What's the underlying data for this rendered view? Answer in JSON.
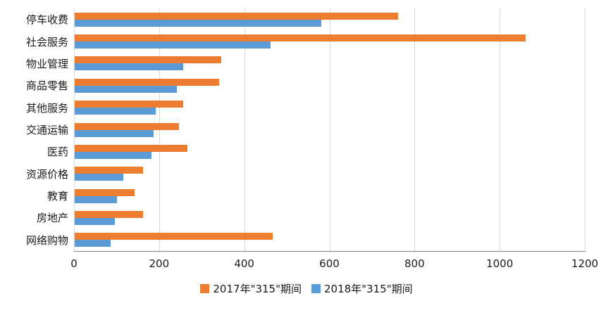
{
  "chart_data": {
    "type": "bar",
    "orientation": "horizontal",
    "title": "",
    "xlabel": "",
    "ylabel": "",
    "categories": [
      "停车收费",
      "社会服务",
      "物业管理",
      "商品零售",
      "其他服务",
      "交通运输",
      "医药",
      "资源价格",
      "教育",
      "房地产",
      "网络购物"
    ],
    "series": [
      {
        "name": "2017年\"315\"期间",
        "color": "#ED7D31",
        "values": [
          760,
          1060,
          345,
          340,
          255,
          245,
          265,
          160,
          140,
          160,
          465
        ]
      },
      {
        "name": "2018年\"315\"期间",
        "color": "#5B9BD5",
        "values": [
          580,
          460,
          255,
          240,
          190,
          185,
          180,
          115,
          100,
          95,
          85
        ]
      }
    ],
    "xlim": [
      0,
      1200
    ],
    "xticks": [
      0,
      200,
      400,
      600,
      800,
      1000,
      1200
    ],
    "grid": "vertical",
    "gridline_color": "#D9D9D9",
    "legend_position": "bottom"
  }
}
